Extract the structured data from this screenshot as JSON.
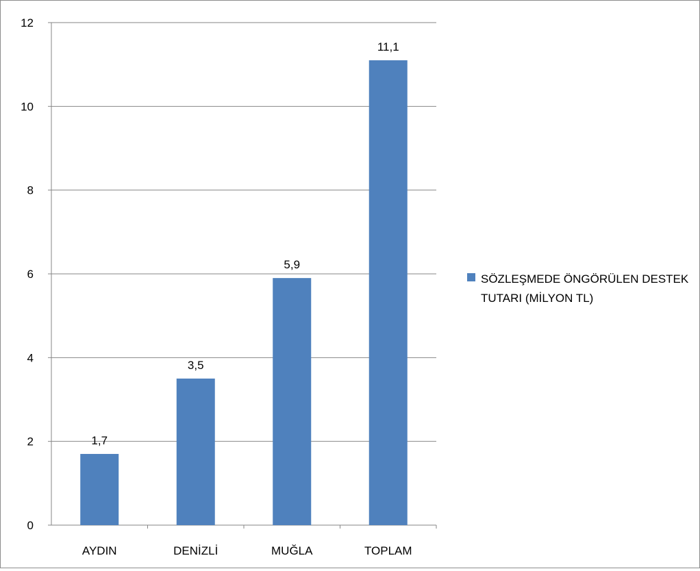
{
  "chart_data": {
    "type": "bar",
    "categories": [
      "AYDIN",
      "DENİZLİ",
      "MUĞLA",
      "TOPLAM"
    ],
    "series": [
      {
        "name": "SÖZLEŞMEDE ÖNGÖRÜLEN DESTEK TUTARI (MİLYON TL)",
        "values": [
          1.7,
          3.5,
          5.9,
          11.1
        ],
        "data_labels": [
          "1,7",
          "3,5",
          "5,9",
          "11,1"
        ],
        "color": "#4f81bd"
      }
    ],
    "y_ticks": [
      0,
      2,
      4,
      6,
      8,
      10,
      12
    ],
    "ylim": [
      0,
      12
    ],
    "grid": true,
    "legend_position": "right"
  }
}
